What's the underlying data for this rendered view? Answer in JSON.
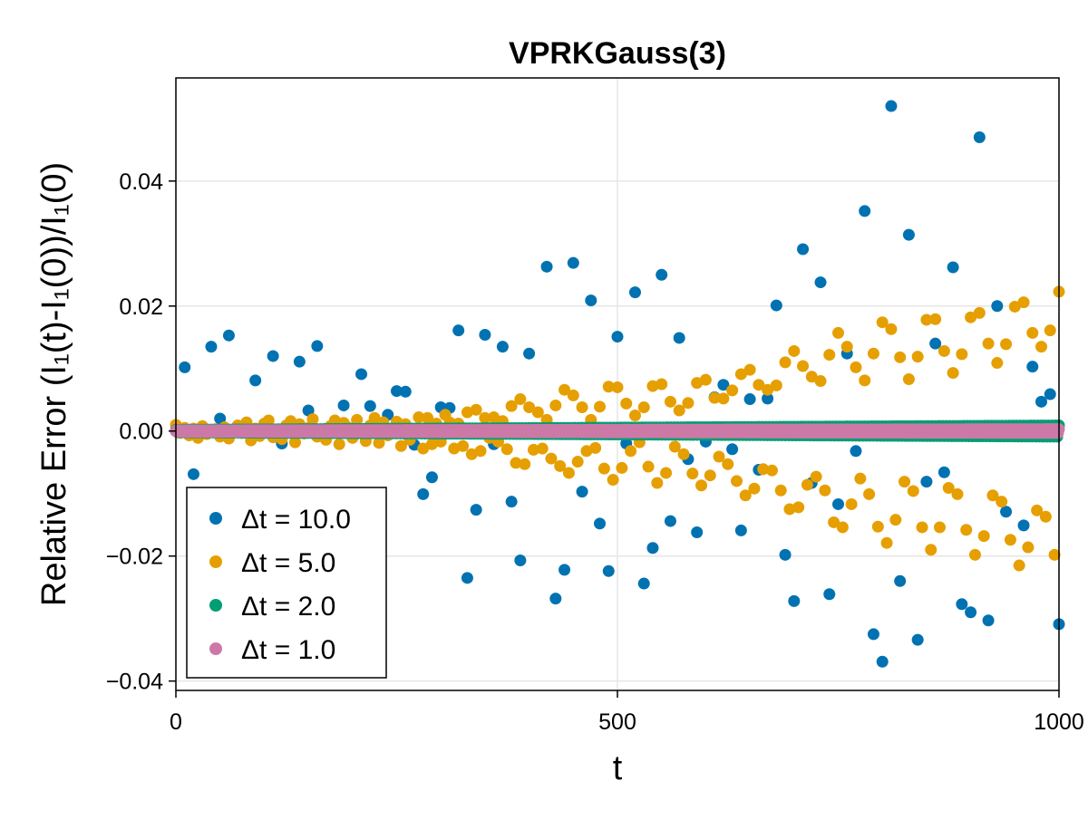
{
  "chart_data": {
    "type": "scatter",
    "title": "VPRKGauss(3)",
    "xlabel": "t",
    "ylabel": "Relative Error (I₁(t)-I₁(0))/I₁(0)",
    "xlim": [
      0,
      1000
    ],
    "ylim": [
      -0.0415,
      0.0565
    ],
    "xticks": [
      0,
      500,
      1000
    ],
    "xtick_labels": [
      "0",
      "500",
      "1000"
    ],
    "yticks": [
      -0.04,
      -0.02,
      0.0,
      0.02,
      0.04
    ],
    "ytick_labels": [
      "−0.04",
      "−0.02",
      "0.00",
      "0.02",
      "0.04"
    ],
    "grid": true,
    "legend_position": "bottom-left",
    "series": [
      {
        "name": "Δt = 10.0",
        "color": "#0072b2",
        "points": [
          [
            0,
            0.0
          ],
          [
            10,
            0.0102
          ],
          [
            20,
            -0.0069
          ],
          [
            30,
            0.0
          ],
          [
            40,
            0.0135
          ],
          [
            50,
            0.002
          ],
          [
            60,
            0.0153
          ],
          [
            70,
            0.0
          ],
          [
            80,
            0.0
          ],
          [
            90,
            0.0081
          ],
          [
            100,
            0.0
          ],
          [
            110,
            0.012
          ],
          [
            120,
            -0.002
          ],
          [
            130,
            0.0
          ],
          [
            140,
            0.0111
          ],
          [
            150,
            0.0033
          ],
          [
            160,
            0.0136
          ],
          [
            170,
            0.0
          ],
          [
            180,
            0.0
          ],
          [
            190,
            0.0041
          ],
          [
            200,
            0.0
          ],
          [
            210,
            0.0091
          ],
          [
            220,
            0.004
          ],
          [
            230,
            0.0
          ],
          [
            240,
            0.0026
          ],
          [
            250,
            0.0064
          ],
          [
            260,
            0.0063
          ],
          [
            270,
            -0.0022
          ],
          [
            280,
            -0.0101
          ],
          [
            290,
            -0.0074
          ],
          [
            300,
            0.0038
          ],
          [
            310,
            0.0037
          ],
          [
            320,
            0.0161
          ],
          [
            330,
            -0.0235
          ],
          [
            340,
            -0.0126
          ],
          [
            350,
            0.0154
          ],
          [
            360,
            -0.0021
          ],
          [
            370,
            0.0135
          ],
          [
            380,
            -0.0113
          ],
          [
            390,
            -0.0207
          ],
          [
            400,
            0.0124
          ],
          [
            410,
            0.0
          ],
          [
            420,
            0.0263
          ],
          [
            430,
            -0.0268
          ],
          [
            440,
            -0.0222
          ],
          [
            450,
            0.0269
          ],
          [
            460,
            -0.0097
          ],
          [
            470,
            0.0209
          ],
          [
            480,
            -0.0148
          ],
          [
            490,
            -0.0224
          ],
          [
            500,
            0.0151
          ],
          [
            510,
            -0.002
          ],
          [
            520,
            0.0222
          ],
          [
            530,
            -0.0244
          ],
          [
            540,
            -0.0187
          ],
          [
            550,
            0.025
          ],
          [
            560,
            -0.0144
          ],
          [
            570,
            0.0149
          ],
          [
            580,
            -0.0045
          ],
          [
            590,
            -0.0162
          ],
          [
            600,
            -0.0017
          ],
          [
            610,
            0.0054
          ],
          [
            620,
            0.0074
          ],
          [
            630,
            -0.0029
          ],
          [
            640,
            -0.0159
          ],
          [
            650,
            0.0051
          ],
          [
            660,
            -0.0062
          ],
          [
            670,
            0.0052
          ],
          [
            680,
            0.0201
          ],
          [
            690,
            -0.0198
          ],
          [
            700,
            -0.0272
          ],
          [
            710,
            0.0291
          ],
          [
            720,
            -0.0083
          ],
          [
            730,
            0.0238
          ],
          [
            740,
            -0.0261
          ],
          [
            750,
            -0.0117
          ],
          [
            760,
            0.0124
          ],
          [
            770,
            -0.0032
          ],
          [
            780,
            0.0352
          ],
          [
            790,
            -0.0325
          ],
          [
            800,
            -0.0369
          ],
          [
            810,
            0.052
          ],
          [
            820,
            -0.024
          ],
          [
            830,
            0.0314
          ],
          [
            840,
            -0.0334
          ],
          [
            850,
            -0.0081
          ],
          [
            860,
            0.014
          ],
          [
            870,
            -0.0066
          ],
          [
            880,
            0.0262
          ],
          [
            890,
            -0.0277
          ],
          [
            900,
            -0.029
          ],
          [
            910,
            0.047
          ],
          [
            920,
            -0.0303
          ],
          [
            930,
            0.02
          ],
          [
            940,
            -0.0129
          ],
          [
            950,
            -0.0007
          ],
          [
            960,
            -0.0151
          ],
          [
            970,
            0.0103
          ],
          [
            980,
            0.0047
          ],
          [
            990,
            0.0059
          ],
          [
            1000,
            -0.0309
          ]
        ]
      },
      {
        "name": "Δt = 5.0",
        "color": "#e69f00",
        "points": [
          [
            0,
            0.001
          ],
          [
            5,
            -0.0003
          ],
          [
            10,
            0.0005
          ],
          [
            15,
            -0.0007
          ],
          [
            20,
            0.0004
          ],
          [
            25,
            -0.0011
          ],
          [
            30,
            0.0008
          ],
          [
            35,
            -0.0005
          ],
          [
            40,
            0.0
          ],
          [
            45,
            0.0003
          ],
          [
            50,
            -0.0009
          ],
          [
            55,
            0.0006
          ],
          [
            60,
            -0.0012
          ],
          [
            65,
            0.0
          ],
          [
            70,
            0.0009
          ],
          [
            75,
            -0.0003
          ],
          [
            80,
            0.0014
          ],
          [
            85,
            -0.0015
          ],
          [
            90,
            0.0004
          ],
          [
            95,
            -0.0008
          ],
          [
            100,
            0.0012
          ],
          [
            105,
            0.0017
          ],
          [
            110,
            -0.001
          ],
          [
            115,
            0.0002
          ],
          [
            120,
            -0.0013
          ],
          [
            125,
            0.0009
          ],
          [
            130,
            0.0016
          ],
          [
            135,
            -0.0018
          ],
          [
            140,
            0.0011
          ],
          [
            145,
            -0.0004
          ],
          [
            150,
            0.0005
          ],
          [
            155,
            0.0019
          ],
          [
            160,
            -0.0009
          ],
          [
            165,
            0.0
          ],
          [
            170,
            -0.0014
          ],
          [
            175,
            0.0008
          ],
          [
            180,
            0.0017
          ],
          [
            185,
            -0.0021
          ],
          [
            190,
            0.0013
          ],
          [
            195,
            0.0006
          ],
          [
            200,
            -0.0011
          ],
          [
            205,
            0.0018
          ],
          [
            210,
            0.0002
          ],
          [
            215,
            -0.0016
          ],
          [
            220,
            0.0009
          ],
          [
            225,
            0.0021
          ],
          [
            230,
            -0.0019
          ],
          [
            235,
            0.0014
          ],
          [
            240,
            -0.0007
          ],
          [
            245,
            0.0004
          ],
          [
            250,
            0.0015
          ],
          [
            255,
            -0.0024
          ],
          [
            260,
            0.0011
          ],
          [
            265,
            -0.0014
          ],
          [
            270,
            0.0
          ],
          [
            275,
            0.0022
          ],
          [
            280,
            -0.0028
          ],
          [
            285,
            0.0021
          ],
          [
            290,
            -0.0021
          ],
          [
            295,
            0.0012
          ],
          [
            300,
            -0.0017
          ],
          [
            305,
            0.0026
          ],
          [
            310,
            0.0014
          ],
          [
            315,
            -0.0028
          ],
          [
            320,
            0.0012
          ],
          [
            325,
            -0.0024
          ],
          [
            330,
            0.003
          ],
          [
            335,
            -0.0037
          ],
          [
            340,
            0.0034
          ],
          [
            345,
            -0.0032
          ],
          [
            350,
            0.0021
          ],
          [
            355,
            -0.0011
          ],
          [
            360,
            0.0022
          ],
          [
            365,
            -0.0017
          ],
          [
            370,
            0.0016
          ],
          [
            375,
            -0.0029
          ],
          [
            380,
            0.004
          ],
          [
            385,
            -0.0051
          ],
          [
            390,
            0.0051
          ],
          [
            395,
            -0.0053
          ],
          [
            400,
            0.0038
          ],
          [
            405,
            -0.003
          ],
          [
            410,
            0.003
          ],
          [
            415,
            -0.0028
          ],
          [
            420,
            0.0018
          ],
          [
            425,
            -0.0044
          ],
          [
            430,
            0.0041
          ],
          [
            435,
            -0.0056
          ],
          [
            440,
            0.0066
          ],
          [
            445,
            -0.0067
          ],
          [
            450,
            0.0057
          ],
          [
            455,
            -0.0049
          ],
          [
            460,
            0.0038
          ],
          [
            465,
            -0.0032
          ],
          [
            470,
            0.0018
          ],
          [
            475,
            -0.0027
          ],
          [
            480,
            0.0039
          ],
          [
            485,
            -0.006
          ],
          [
            490,
            0.0071
          ],
          [
            495,
            -0.0078
          ],
          [
            500,
            0.007
          ],
          [
            505,
            -0.0059
          ],
          [
            510,
            0.0044
          ],
          [
            515,
            -0.0032
          ],
          [
            520,
            0.0025
          ],
          [
            525,
            -0.0018
          ],
          [
            530,
            0.0038
          ],
          [
            535,
            -0.0057
          ],
          [
            540,
            0.0072
          ],
          [
            545,
            -0.0083
          ],
          [
            550,
            0.0075
          ],
          [
            555,
            -0.0067
          ],
          [
            560,
            0.0047
          ],
          [
            565,
            -0.0025
          ],
          [
            570,
            0.0033
          ],
          [
            575,
            -0.0037
          ],
          [
            580,
            0.0045
          ],
          [
            585,
            -0.0068
          ],
          [
            590,
            0.0077
          ],
          [
            595,
            -0.0087
          ],
          [
            600,
            0.0082
          ],
          [
            605,
            -0.0071
          ],
          [
            610,
            0.0053
          ],
          [
            615,
            -0.0041
          ],
          [
            620,
            0.0052
          ],
          [
            625,
            -0.0053
          ],
          [
            630,
            0.0065
          ],
          [
            635,
            -0.008
          ],
          [
            640,
            0.0091
          ],
          [
            645,
            -0.0103
          ],
          [
            650,
            0.0098
          ],
          [
            655,
            -0.0092
          ],
          [
            660,
            0.0074
          ],
          [
            665,
            -0.0061
          ],
          [
            670,
            0.0066
          ],
          [
            675,
            -0.0063
          ],
          [
            680,
            0.0073
          ],
          [
            685,
            -0.0095
          ],
          [
            690,
            0.011
          ],
          [
            695,
            -0.0125
          ],
          [
            700,
            0.0128
          ],
          [
            705,
            -0.0122
          ],
          [
            710,
            0.0104
          ],
          [
            715,
            -0.0086
          ],
          [
            720,
            0.0087
          ],
          [
            725,
            -0.0073
          ],
          [
            730,
            0.008
          ],
          [
            735,
            -0.0095
          ],
          [
            740,
            0.0122
          ],
          [
            745,
            -0.0146
          ],
          [
            750,
            0.0157
          ],
          [
            755,
            -0.0154
          ],
          [
            760,
            0.0135
          ],
          [
            765,
            -0.0117
          ],
          [
            770,
            0.0102
          ],
          [
            775,
            -0.0076
          ],
          [
            780,
            0.0081
          ],
          [
            785,
            -0.0101
          ],
          [
            790,
            0.0124
          ],
          [
            795,
            -0.0153
          ],
          [
            800,
            0.0174
          ],
          [
            805,
            -0.0179
          ],
          [
            810,
            0.0163
          ],
          [
            815,
            -0.0142
          ],
          [
            820,
            0.0118
          ],
          [
            825,
            -0.0081
          ],
          [
            830,
            0.0083
          ],
          [
            835,
            -0.0096
          ],
          [
            840,
            0.0119
          ],
          [
            845,
            -0.0154
          ],
          [
            850,
            0.0178
          ],
          [
            855,
            -0.019
          ],
          [
            860,
            0.0179
          ],
          [
            865,
            -0.0154
          ],
          [
            870,
            0.0128
          ],
          [
            875,
            -0.0091
          ],
          [
            880,
            0.0093
          ],
          [
            885,
            -0.0101
          ],
          [
            890,
            0.0123
          ],
          [
            895,
            -0.0158
          ],
          [
            900,
            0.0182
          ],
          [
            905,
            -0.0198
          ],
          [
            910,
            0.0189
          ],
          [
            915,
            -0.0168
          ],
          [
            920,
            0.014
          ],
          [
            925,
            -0.0103
          ],
          [
            930,
            0.0109
          ],
          [
            935,
            -0.0113
          ],
          [
            940,
            0.0139
          ],
          [
            945,
            -0.0174
          ],
          [
            950,
            0.0199
          ],
          [
            955,
            -0.0215
          ],
          [
            960,
            0.0206
          ],
          [
            965,
            -0.0186
          ],
          [
            970,
            0.0157
          ],
          [
            975,
            -0.0127
          ],
          [
            980,
            0.0135
          ],
          [
            985,
            -0.0137
          ],
          [
            990,
            0.0161
          ],
          [
            995,
            -0.0198
          ],
          [
            1000,
            0.0223
          ]
        ]
      },
      {
        "name": "Δt = 2.0",
        "color": "#009e73",
        "amplitude_start": 0.0002,
        "amplitude_end": 0.0009,
        "t_step": 2
      },
      {
        "name": "Δt = 1.0",
        "color": "#cc79a7",
        "amplitude_start": 0.0001,
        "amplitude_end": 0.0003,
        "t_step": 1
      }
    ]
  }
}
